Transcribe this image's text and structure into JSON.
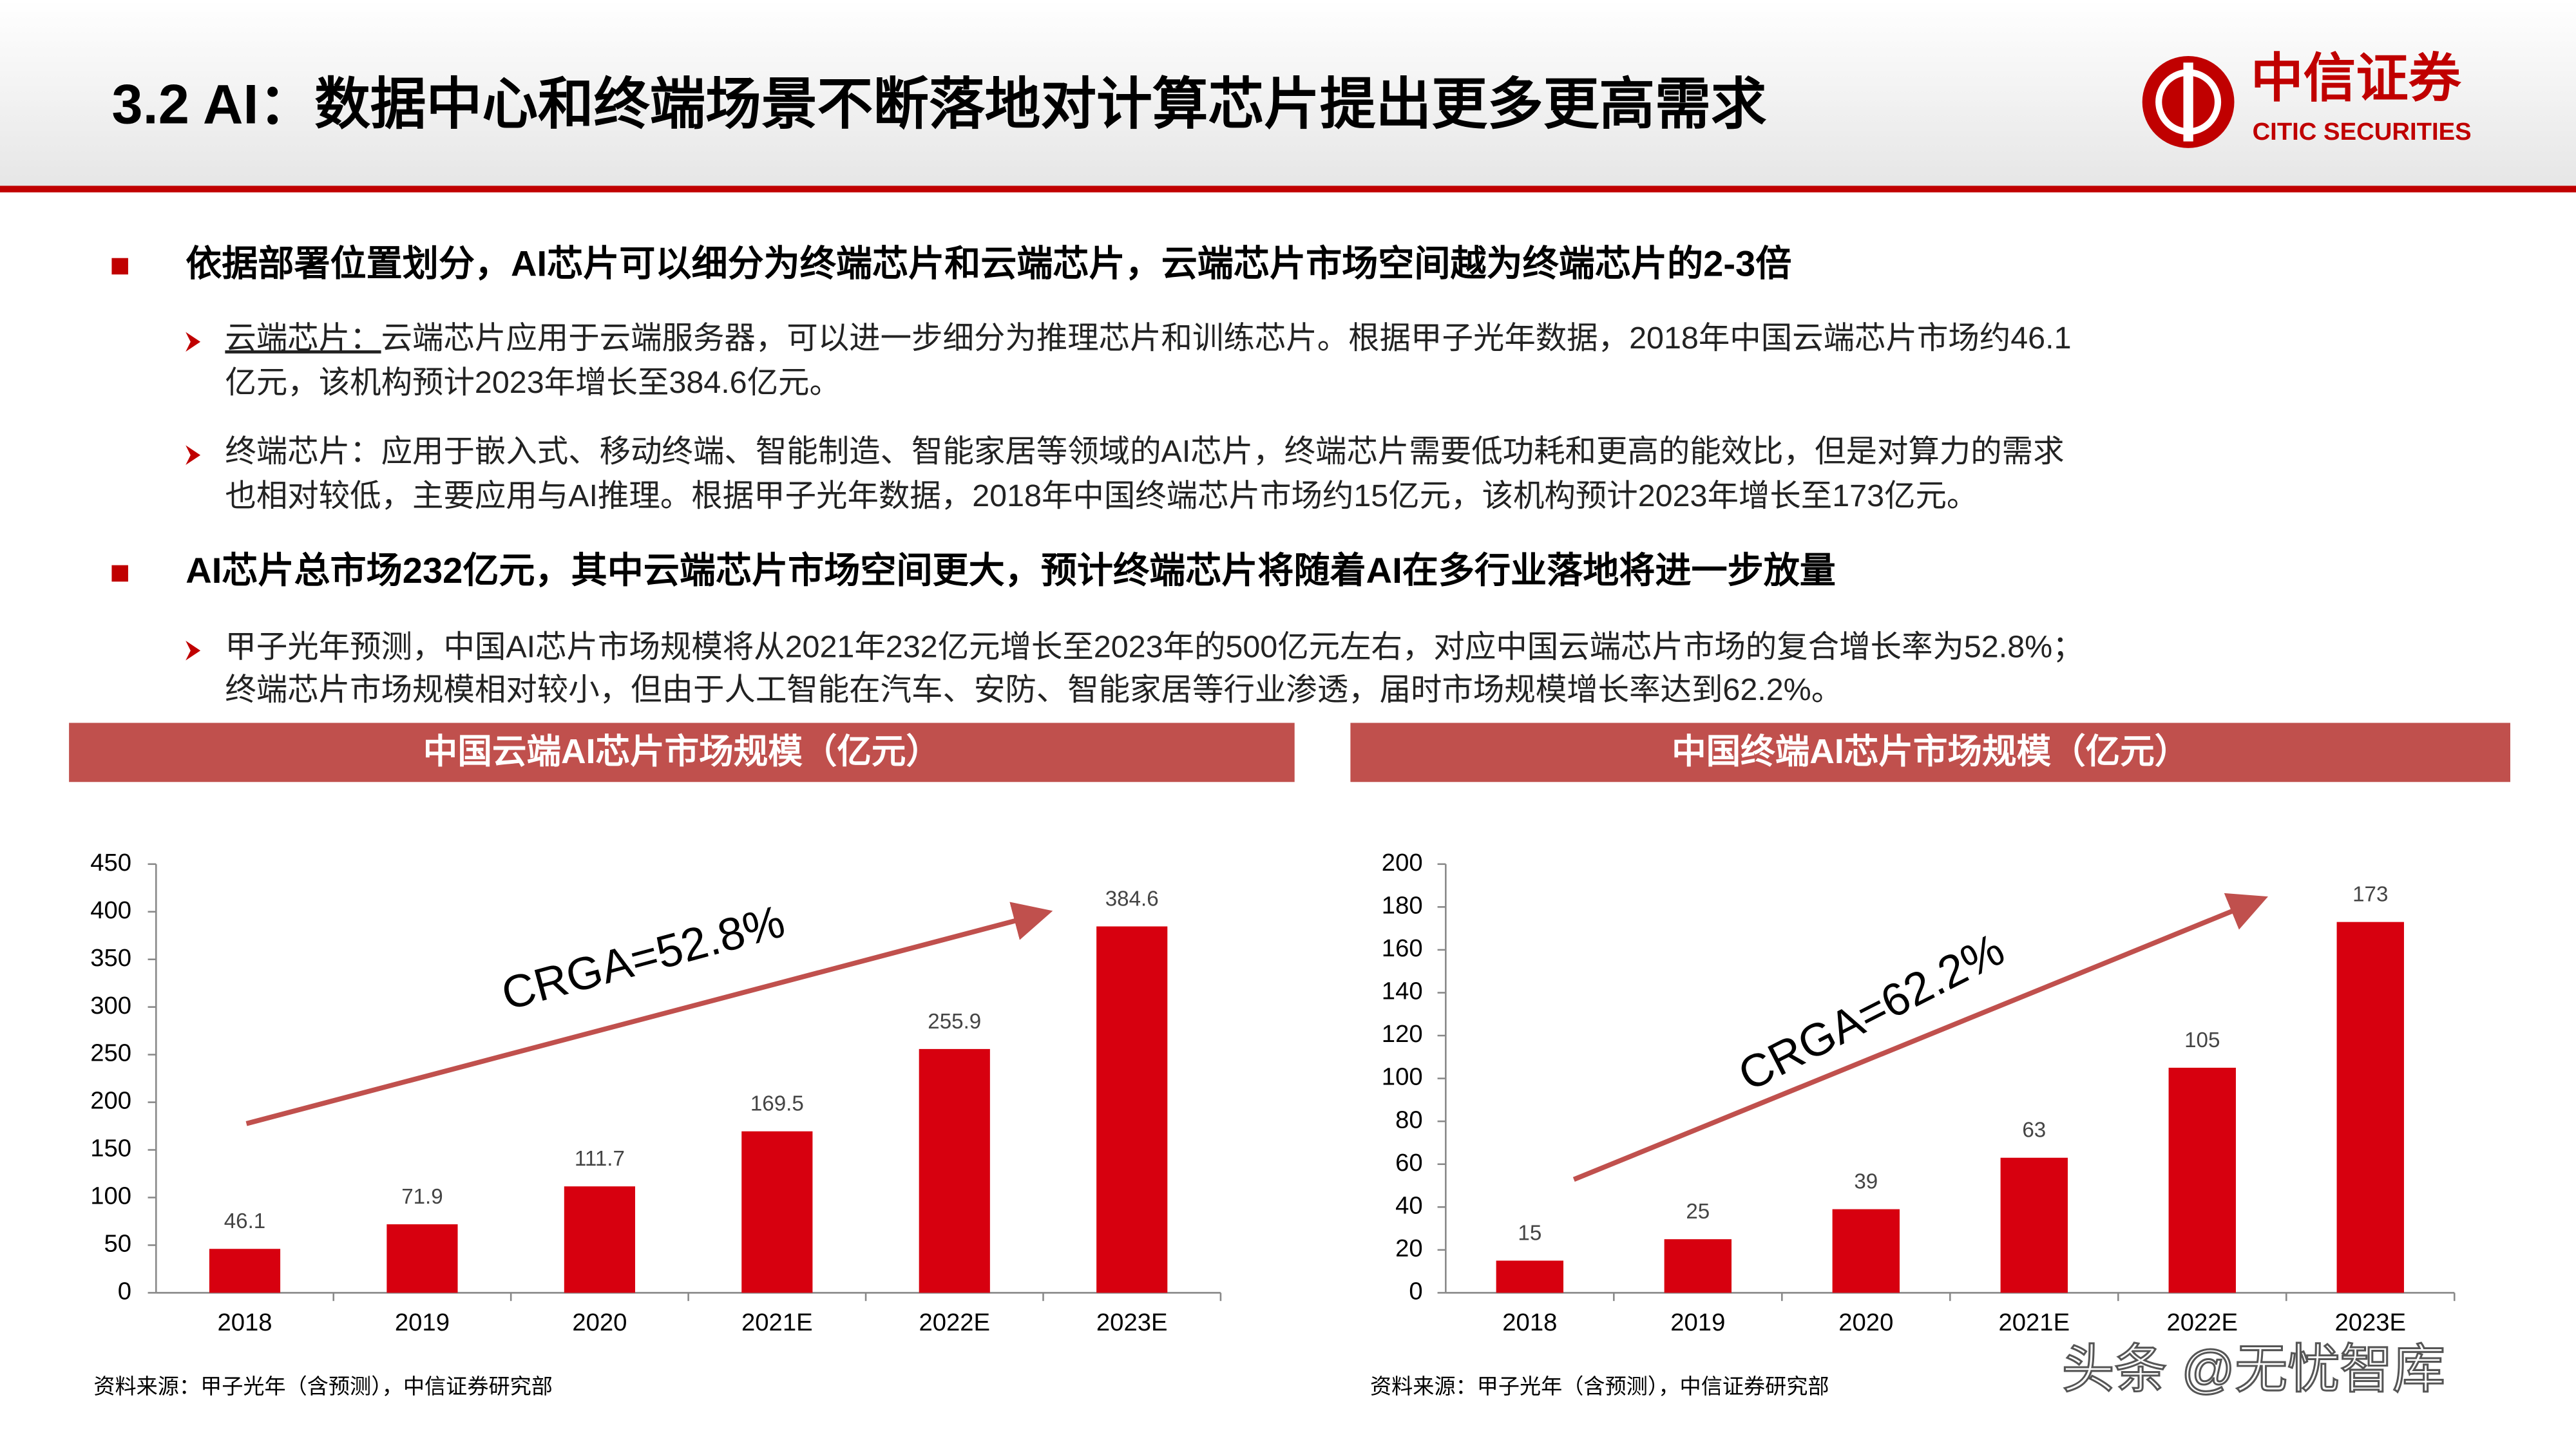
{
  "header": {
    "title": "3.2 AI：数据中心和终端场景不断落地对计算芯片提出更多更高需求",
    "logo_cn": "中信证券",
    "logo_en": "CITIC SECURITIES"
  },
  "bullets": [
    {
      "text": "依据部署位置划分，AI芯片可以细分为终端芯片和云端芯片，云端芯片市场空间越为终端芯片的2-3倍",
      "items": [
        {
          "label": "云端芯片：",
          "lines": [
            "云端芯片应用于云端服务器，可以进一步细分为推理芯片和训练芯片。根据甲子光年数据，2018年中国云端芯片市场约46.1",
            "亿元，该机构预计2023年增长至384.6亿元。"
          ]
        },
        {
          "lines": [
            "终端芯片：应用于嵌入式、移动终端、智能制造、智能家居等领域的AI芯片，终端芯片需要低功耗和更高的能效比，但是对算力的需求",
            "也相对较低，主要应用与AI推理。根据甲子光年数据，2018年中国终端芯片市场约15亿元，该机构预计2023年增长至173亿元。"
          ]
        }
      ]
    },
    {
      "text": "AI芯片总市场232亿元，其中云端芯片市场空间更大，预计终端芯片将随着AI在多行业落地将进一步放量",
      "items": [
        {
          "lines": [
            "甲子光年预测，中国AI芯片市场规模将从2021年232亿元增长至2023年的500亿元左右，对应中国云端芯片市场的复合增长率为52.8%；",
            "终端芯片市场规模相对较小，但由于人工智能在汽车、安防、智能家居等行业渗透，届时市场规模增长率达到62.2%。"
          ]
        }
      ]
    }
  ],
  "chart_data": [
    {
      "type": "bar",
      "title": "中国云端AI芯片市场规模（亿元）",
      "categories": [
        "2018",
        "2019",
        "2020",
        "2021E",
        "2022E",
        "2023E"
      ],
      "values": [
        46.1,
        71.9,
        111.7,
        169.5,
        255.9,
        384.6
      ],
      "color": "#d7000f",
      "ylim": [
        0,
        450
      ],
      "yticks": [
        0,
        50,
        100,
        150,
        200,
        250,
        300,
        350,
        400,
        450
      ],
      "annotation": "CRGA=52.8%",
      "source": "资料来源：甲子光年（含预测），中信证券研究部"
    },
    {
      "type": "bar",
      "title": "中国终端AI芯片市场规模（亿元）",
      "categories": [
        "2018",
        "2019",
        "2020",
        "2021E",
        "2022E",
        "2023E"
      ],
      "values": [
        15,
        25,
        39,
        63,
        105,
        173
      ],
      "color": "#d7000f",
      "ylim": [
        0,
        200
      ],
      "yticks": [
        0,
        20,
        40,
        60,
        80,
        100,
        120,
        140,
        160,
        180,
        200
      ],
      "annotation": "CRGA=62.2%",
      "source": "资料来源：甲子光年（含预测），中信证券研究部"
    }
  ],
  "watermark": "头条 @无忧智库"
}
